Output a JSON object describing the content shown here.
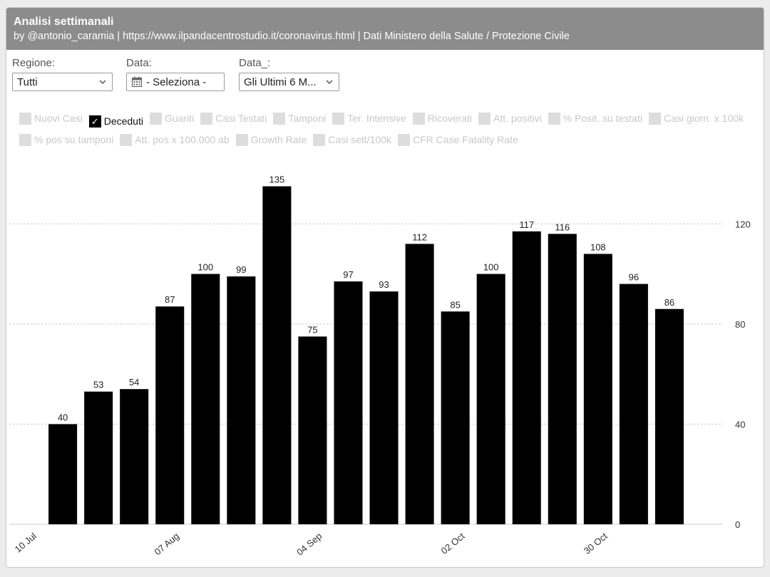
{
  "header": {
    "title": "Analisi settimanali",
    "subtitle": "by @antonio_caramia | https://www.ilpandacentrostudio.it/coronavirus.html | Dati Ministero della Salute / Protezione Civile"
  },
  "filters": {
    "regione": {
      "label": "Regione:",
      "value": "Tutti"
    },
    "data": {
      "label": "Data:",
      "value": "- Seleziona -"
    },
    "data2": {
      "label": "Data_:",
      "value": "Gli Ultimi 6 M..."
    }
  },
  "legend": [
    {
      "label": "Nuovi Casi",
      "active": false
    },
    {
      "label": "Deceduti",
      "active": true
    },
    {
      "label": "Guariti",
      "active": false
    },
    {
      "label": "Casi Testati",
      "active": false
    },
    {
      "label": "Tamponi",
      "active": false
    },
    {
      "label": "Ter. Intensive",
      "active": false
    },
    {
      "label": "Ricoverati",
      "active": false
    },
    {
      "label": "Att. positivi",
      "active": false
    },
    {
      "label": "% Posit. su testati",
      "active": false
    },
    {
      "label": "Casi giorn. x 100k",
      "active": false
    },
    {
      "label": "% pos su tamponi",
      "active": false
    },
    {
      "label": "Att. pos x 100.000 ab",
      "active": false
    },
    {
      "label": "Growth Rate",
      "active": false
    },
    {
      "label": "Casi sett/100k",
      "active": false
    },
    {
      "label": "CFR Case Fatality Rate",
      "active": false
    }
  ],
  "colors": {
    "bar": "#000000",
    "header": "#8c8c8c",
    "grid": "#d0d0d0",
    "inactive": "#dddddd"
  },
  "chart_data": {
    "type": "bar",
    "series": [
      {
        "name": "Deceduti",
        "values": [
          40,
          53,
          54,
          87,
          100,
          99,
          135,
          75,
          97,
          93,
          112,
          85,
          100,
          117,
          116,
          108,
          96,
          86
        ]
      }
    ],
    "x_start_slot": 1,
    "slot_count": 20,
    "x_ticks": [
      {
        "label": "10 Jul",
        "slot": 0
      },
      {
        "label": "07 Aug",
        "slot": 4
      },
      {
        "label": "04 Sep",
        "slot": 8
      },
      {
        "label": "02 Oct",
        "slot": 12
      },
      {
        "label": "30 Oct",
        "slot": 16
      }
    ],
    "y_ticks": [
      0,
      40,
      80,
      120
    ],
    "ylim": [
      0,
      138
    ],
    "y_axis_position": "right",
    "grid": true,
    "data_labels": true
  }
}
